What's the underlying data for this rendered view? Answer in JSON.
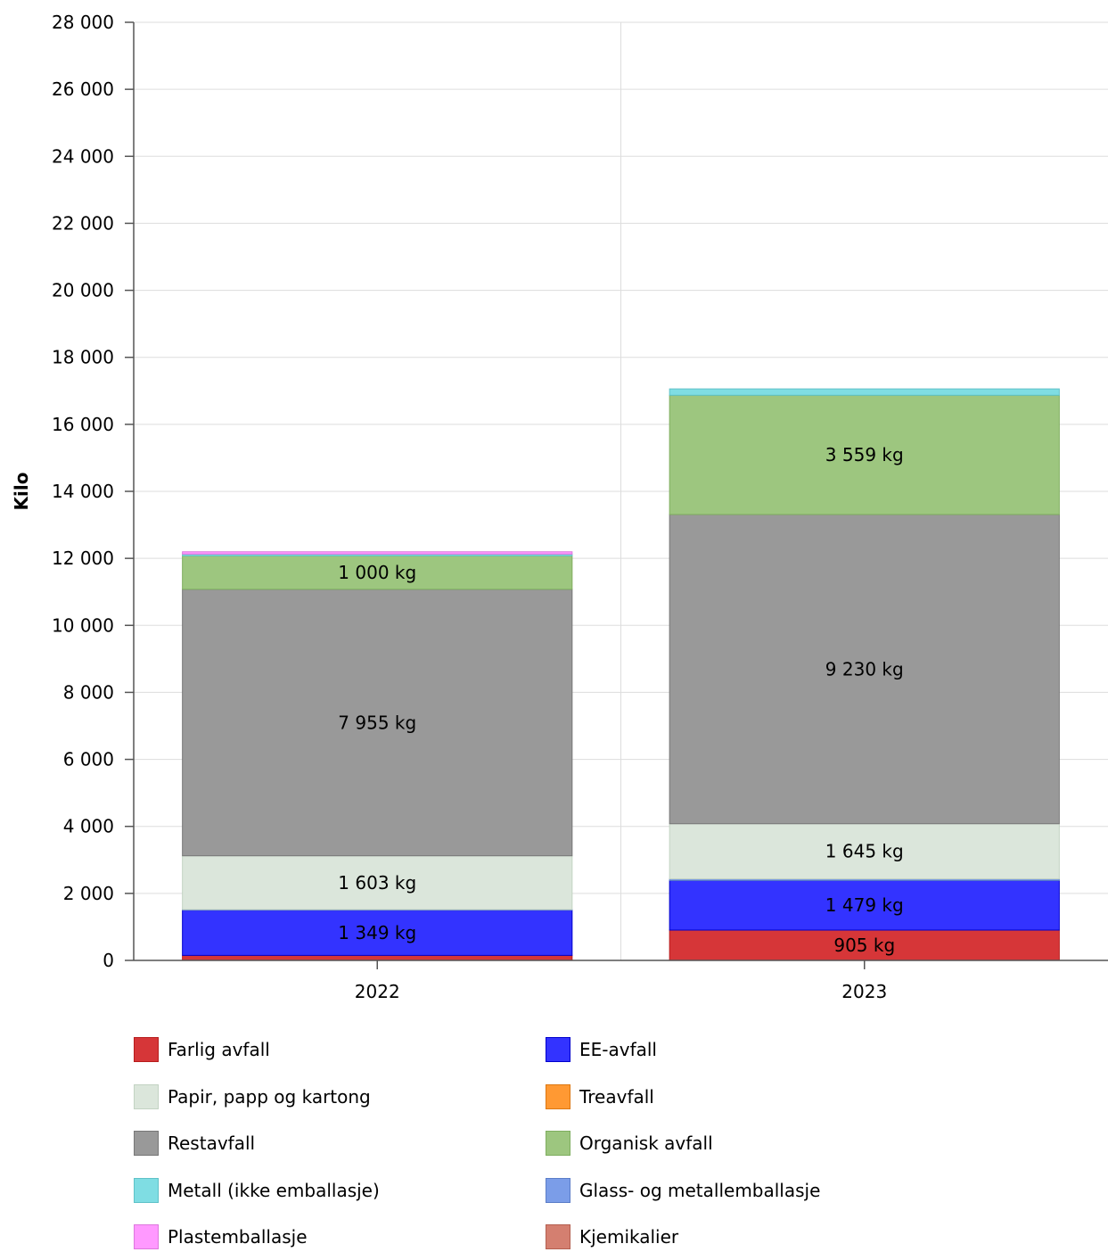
{
  "chart_data": {
    "type": "bar",
    "stacked": true,
    "ylabel": "Kilo",
    "ylim": [
      0,
      28000
    ],
    "yticks": [
      "0",
      "2 000",
      "4 000",
      "6 000",
      "8 000",
      "10 000",
      "12 000",
      "14 000",
      "16 000",
      "18 000",
      "20 000",
      "22 000",
      "24 000",
      "26 000",
      "28 000"
    ],
    "ytick_values": [
      0,
      2000,
      4000,
      6000,
      8000,
      10000,
      12000,
      14000,
      16000,
      18000,
      20000,
      22000,
      24000,
      26000,
      28000
    ],
    "categories": [
      "2022",
      "2023"
    ],
    "grid": true,
    "legend_position": "bottom",
    "series": [
      {
        "name": "Farlig avfall",
        "color": "#d63638",
        "border": "#b71c1c",
        "values": [
          150,
          905
        ],
        "labels": [
          "",
          "905 kg"
        ]
      },
      {
        "name": "EE-avfall",
        "color": "#3333ff",
        "border": "#0000cc",
        "values": [
          1349,
          1479
        ],
        "labels": [
          "1 349 kg",
          "1 479 kg"
        ]
      },
      {
        "name": "Glass- og metallemballasje",
        "color": "#7b9de8",
        "border": "#5b7dc8",
        "values": [
          20,
          50
        ],
        "labels": [
          "",
          ""
        ]
      },
      {
        "name": "Papir, papp og kartong",
        "color": "#dbe6db",
        "border": "#c3d3c3",
        "values": [
          1603,
          1645
        ],
        "labels": [
          "1 603 kg",
          "1 645 kg"
        ]
      },
      {
        "name": "Restavfall",
        "color": "#999999",
        "border": "#777777",
        "values": [
          7955,
          9230
        ],
        "labels": [
          "7 955 kg",
          "9 230 kg"
        ]
      },
      {
        "name": "Organisk avfall",
        "color": "#9dc67f",
        "border": "#7fae5f",
        "values": [
          1000,
          3559
        ],
        "labels": [
          "1 000 kg",
          "3 559 kg"
        ]
      },
      {
        "name": "Metall (ikke emballasje)",
        "color": "#7fdde3",
        "border": "#5fc2c8",
        "values": [
          50,
          190
        ],
        "labels": [
          "",
          ""
        ]
      },
      {
        "name": "Plastemballasje",
        "color": "#ff99ff",
        "border": "#dd77dd",
        "values": [
          70,
          0
        ],
        "labels": [
          "",
          ""
        ]
      },
      {
        "name": "Treavfall",
        "color": "#ff9933",
        "border": "#dd7711",
        "values": [
          0,
          0
        ],
        "labels": [
          "",
          ""
        ]
      },
      {
        "name": "Kjemikalier",
        "color": "#d47f70",
        "border": "#b45f50",
        "values": [
          0,
          0
        ],
        "labels": [
          "",
          ""
        ]
      }
    ]
  },
  "legend": {
    "items": [
      {
        "label": "Farlig avfall",
        "color": "#d63638",
        "border": "#b71c1c"
      },
      {
        "label": "EE-avfall",
        "color": "#3333ff",
        "border": "#0000cc"
      },
      {
        "label": "Papir, papp og kartong",
        "color": "#dbe6db",
        "border": "#c3d3c3"
      },
      {
        "label": "Treavfall",
        "color": "#ff9933",
        "border": "#dd7711"
      },
      {
        "label": "Restavfall",
        "color": "#999999",
        "border": "#777777"
      },
      {
        "label": "Organisk avfall",
        "color": "#9dc67f",
        "border": "#7fae5f"
      },
      {
        "label": "Metall (ikke emballasje)",
        "color": "#7fdde3",
        "border": "#5fc2c8"
      },
      {
        "label": "Glass- og metallemballasje",
        "color": "#7b9de8",
        "border": "#5b7dc8"
      },
      {
        "label": "Plastemballasje",
        "color": "#ff99ff",
        "border": "#dd77dd"
      },
      {
        "label": "Kjemikalier",
        "color": "#d47f70",
        "border": "#b45f50"
      }
    ]
  }
}
